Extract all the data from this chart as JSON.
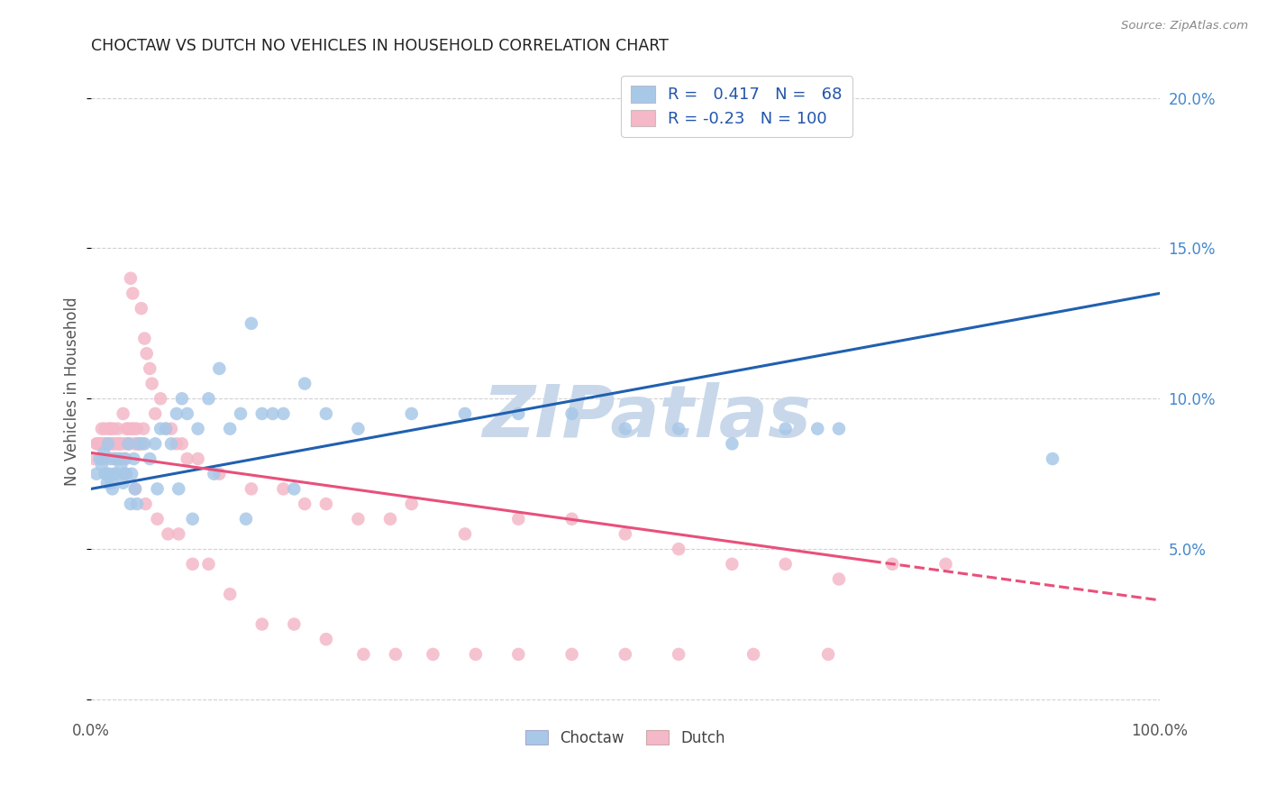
{
  "title": "CHOCTAW VS DUTCH NO VEHICLES IN HOUSEHOLD CORRELATION CHART",
  "source": "Source: ZipAtlas.com",
  "ylabel": "No Vehicles in Household",
  "xlim": [
    0.0,
    100.0
  ],
  "ylim": [
    -0.5,
    21.0
  ],
  "yticks": [
    0.0,
    5.0,
    10.0,
    15.0,
    20.0
  ],
  "left_ytick_labels": [
    "",
    "",
    "",
    "",
    ""
  ],
  "right_ytick_labels": [
    "",
    "5.0%",
    "10.0%",
    "15.0%",
    "20.0%"
  ],
  "choctaw_color": "#a8c8e8",
  "dutch_color": "#f4b8c8",
  "choctaw_line_color": "#2060b0",
  "dutch_line_color": "#e8507a",
  "choctaw_R": 0.417,
  "choctaw_N": 68,
  "dutch_R": -0.23,
  "dutch_N": 100,
  "background_color": "#ffffff",
  "grid_color": "#cccccc",
  "watermark_text": "ZIPatlas",
  "watermark_color": "#c8d8ea",
  "choctaw_trendline_x0": 0.0,
  "choctaw_trendline_x1": 100.0,
  "choctaw_trendline_y0": 7.0,
  "choctaw_trendline_y1": 13.5,
  "dutch_solid_x0": 0.0,
  "dutch_solid_x1": 73.0,
  "dutch_solid_y0": 8.2,
  "dutch_solid_y1": 4.6,
  "dutch_dashed_x0": 73.0,
  "dutch_dashed_x1": 100.0,
  "dutch_dashed_y0": 4.6,
  "dutch_dashed_y1": 3.3,
  "choctaw_x": [
    0.5,
    0.8,
    1.0,
    1.2,
    1.4,
    1.5,
    1.6,
    1.8,
    2.0,
    2.2,
    2.5,
    2.8,
    3.0,
    3.2,
    3.5,
    3.8,
    4.0,
    4.5,
    5.0,
    5.5,
    6.0,
    6.5,
    7.0,
    7.5,
    8.0,
    8.5,
    9.0,
    10.0,
    11.0,
    12.0,
    13.0,
    14.0,
    15.0,
    16.0,
    17.0,
    18.0,
    20.0,
    22.0,
    25.0,
    30.0,
    35.0,
    40.0,
    45.0,
    50.0,
    55.0,
    60.0,
    65.0,
    68.0,
    70.0,
    90.0,
    1.1,
    1.3,
    1.7,
    1.9,
    2.1,
    2.3,
    2.7,
    3.1,
    3.3,
    3.7,
    4.1,
    4.3,
    6.2,
    8.2,
    9.5,
    11.5,
    14.5,
    19.0
  ],
  "choctaw_y": [
    7.5,
    8.0,
    7.8,
    8.2,
    7.5,
    7.2,
    8.5,
    8.0,
    7.0,
    7.5,
    8.0,
    7.8,
    7.2,
    8.0,
    8.5,
    7.5,
    8.0,
    8.5,
    8.5,
    8.0,
    8.5,
    9.0,
    9.0,
    8.5,
    9.5,
    10.0,
    9.5,
    9.0,
    10.0,
    11.0,
    9.0,
    9.5,
    12.5,
    9.5,
    9.5,
    9.5,
    10.5,
    9.5,
    9.0,
    9.5,
    9.5,
    9.5,
    9.5,
    9.0,
    9.0,
    8.5,
    9.0,
    9.0,
    9.0,
    8.0,
    8.0,
    7.5,
    7.5,
    7.2,
    8.0,
    7.5,
    8.0,
    7.5,
    7.5,
    6.5,
    7.0,
    6.5,
    7.0,
    7.0,
    6.0,
    7.5,
    6.0,
    7.0
  ],
  "dutch_x": [
    0.3,
    0.5,
    0.7,
    0.9,
    1.0,
    1.1,
    1.2,
    1.3,
    1.4,
    1.5,
    1.6,
    1.7,
    1.8,
    1.9,
    2.0,
    2.1,
    2.2,
    2.3,
    2.4,
    2.5,
    2.6,
    2.7,
    2.8,
    2.9,
    3.0,
    3.1,
    3.2,
    3.3,
    3.4,
    3.5,
    3.6,
    3.7,
    3.8,
    3.9,
    4.0,
    4.1,
    4.2,
    4.3,
    4.4,
    4.5,
    4.6,
    4.7,
    4.8,
    4.9,
    5.0,
    5.2,
    5.5,
    5.7,
    6.0,
    6.5,
    7.0,
    7.5,
    8.0,
    8.5,
    9.0,
    10.0,
    12.0,
    15.0,
    18.0,
    20.0,
    22.0,
    25.0,
    28.0,
    30.0,
    35.0,
    40.0,
    45.0,
    50.0,
    55.0,
    60.0,
    65.0,
    70.0,
    75.0,
    80.0,
    0.6,
    0.8,
    1.15,
    2.15,
    3.15,
    4.15,
    5.1,
    6.2,
    7.2,
    8.2,
    9.5,
    11.0,
    13.0,
    16.0,
    19.0,
    22.0,
    25.5,
    28.5,
    32.0,
    36.0,
    40.0,
    45.0,
    50.0,
    55.0,
    62.0,
    69.0
  ],
  "dutch_y": [
    8.0,
    8.5,
    8.5,
    8.0,
    9.0,
    8.5,
    8.5,
    9.0,
    8.5,
    8.5,
    8.5,
    9.0,
    9.0,
    8.5,
    8.5,
    9.0,
    8.5,
    8.0,
    8.5,
    9.0,
    8.5,
    8.5,
    8.5,
    8.0,
    9.5,
    8.5,
    8.0,
    9.0,
    8.5,
    9.0,
    8.5,
    14.0,
    9.0,
    13.5,
    9.0,
    8.5,
    8.5,
    9.0,
    8.5,
    8.5,
    8.5,
    13.0,
    8.5,
    9.0,
    12.0,
    11.5,
    11.0,
    10.5,
    9.5,
    10.0,
    9.0,
    9.0,
    8.5,
    8.5,
    8.0,
    8.0,
    7.5,
    7.0,
    7.0,
    6.5,
    6.5,
    6.0,
    6.0,
    6.5,
    5.5,
    6.0,
    6.0,
    5.5,
    5.0,
    4.5,
    4.5,
    4.0,
    4.5,
    4.5,
    8.5,
    8.5,
    8.0,
    8.0,
    7.5,
    7.0,
    6.5,
    6.0,
    5.5,
    5.5,
    4.5,
    4.5,
    3.5,
    2.5,
    2.5,
    2.0,
    1.5,
    1.5,
    1.5,
    1.5,
    1.5,
    1.5,
    1.5,
    1.5,
    1.5,
    1.5
  ]
}
